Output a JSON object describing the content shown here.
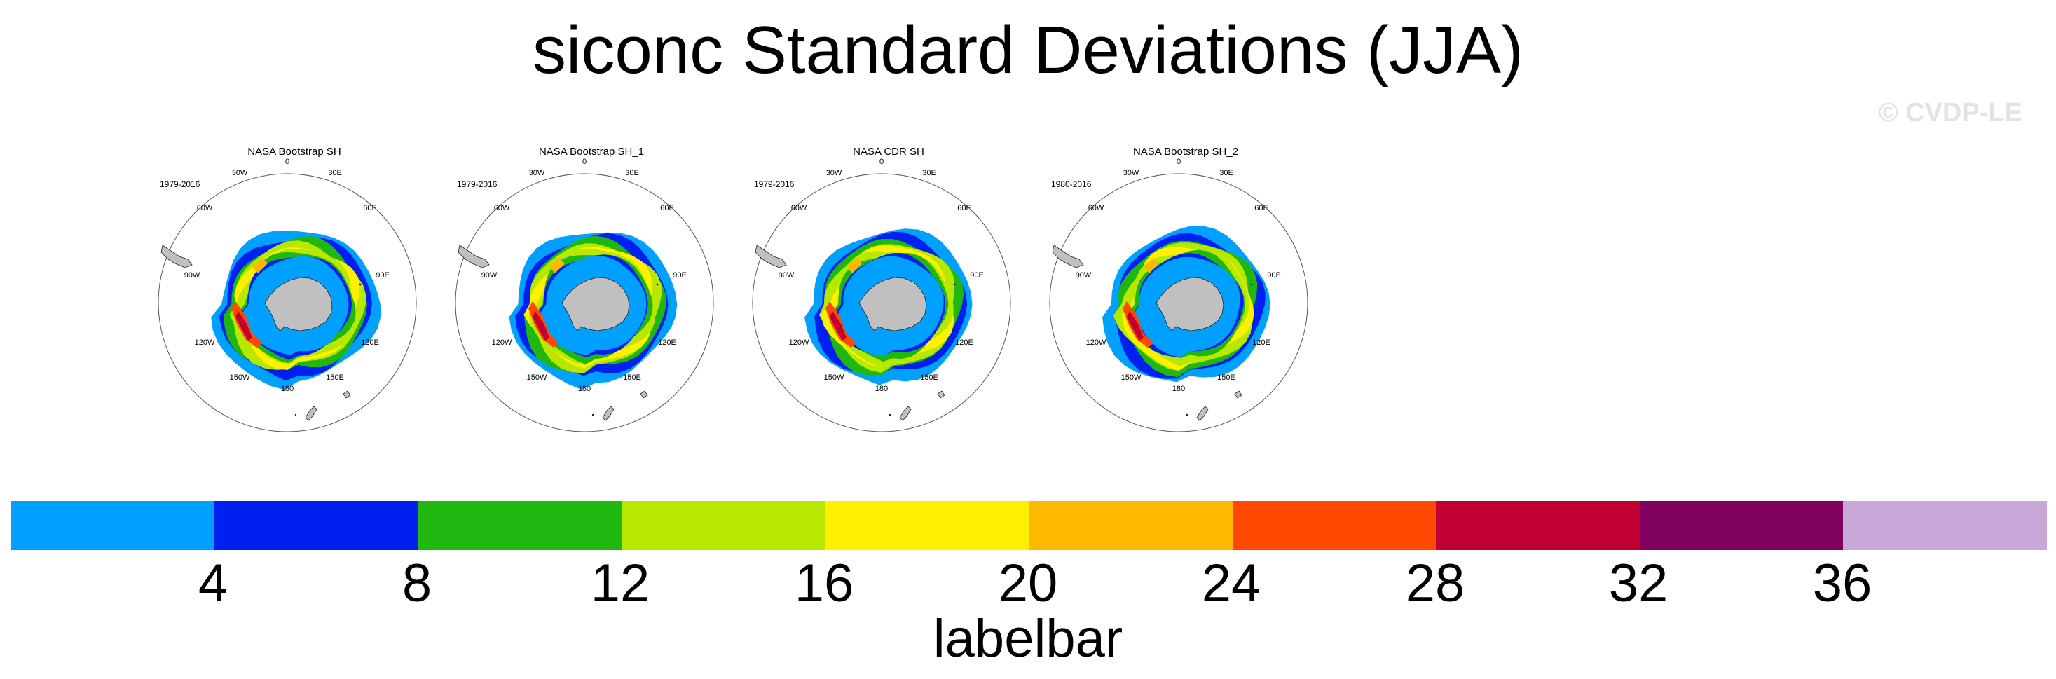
{
  "title": "siconc Standard Deviations (JJA)",
  "watermark": "© CVDP-LE",
  "longitude_labels": [
    "0",
    "30E",
    "60E",
    "90E",
    "120E",
    "150E",
    "180",
    "150W",
    "120W",
    "90W",
    "60W",
    "30W"
  ],
  "panels": [
    {
      "title": "NASA Bootstrap SH",
      "period": "1979-2016"
    },
    {
      "title": "NASA Bootstrap SH_1",
      "period": "1979-2016"
    },
    {
      "title": "NASA CDR SH",
      "period": "1979-2016"
    },
    {
      "title": "NASA Bootstrap SH_2",
      "period": "1980-2016"
    }
  ],
  "labelbar": {
    "title": "labelbar",
    "ticks": [
      "4",
      "8",
      "12",
      "16",
      "20",
      "24",
      "28",
      "32",
      "36"
    ],
    "colors": [
      "#00a0ff",
      "#0020f0",
      "#20b810",
      "#b8e800",
      "#fff000",
      "#ffb800",
      "#ff4800",
      "#c00030",
      "#800060",
      "#c8a8d8"
    ]
  },
  "colors": {
    "land": "#c0c0c0",
    "ocean_background": "#ffffff"
  }
}
